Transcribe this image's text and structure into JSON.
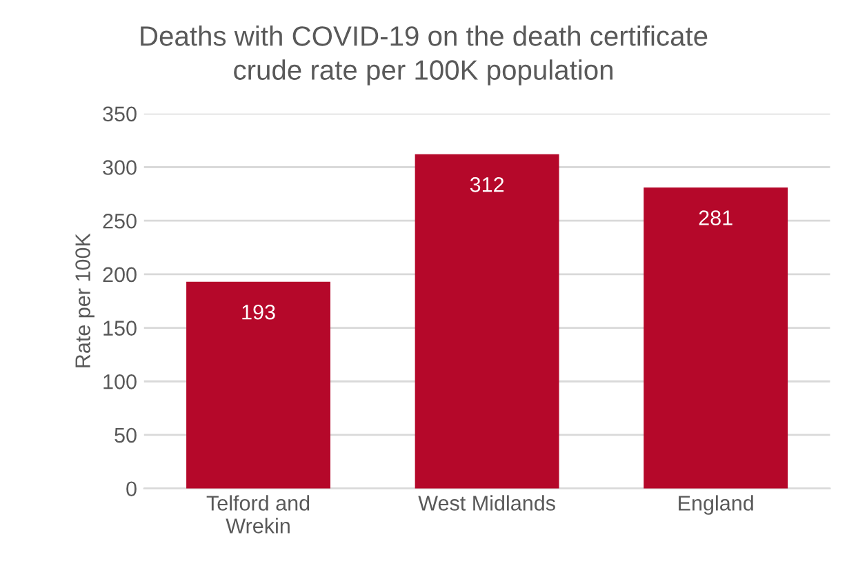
{
  "chart_data": {
    "type": "bar",
    "title": "Deaths with COVID-19 on the death certificate\ncrude rate per 100K population",
    "ylabel": "Rate per 100K",
    "categories": [
      "Telford and\nWrekin",
      "West Midlands",
      "England"
    ],
    "values": [
      193,
      312,
      281
    ],
    "color": "#b5082a",
    "ylim": [
      0,
      350
    ],
    "yticks": [
      0,
      50,
      100,
      150,
      200,
      250,
      300,
      350
    ],
    "grid": "y",
    "data_labels": true
  }
}
